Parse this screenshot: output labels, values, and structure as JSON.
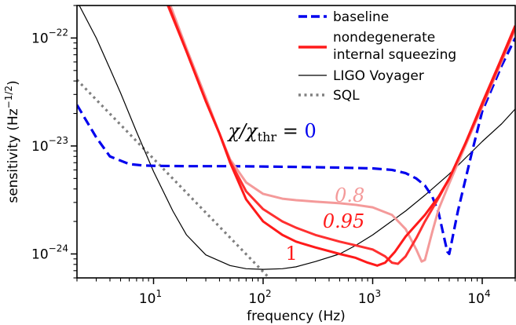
{
  "chart_data": {
    "type": "line",
    "xlabel": "frequency (Hz)",
    "ylabel": "sensitivity (Hz⁻¹ᐟ²)",
    "ylabel_parts": {
      "main": "sensitivity (Hz",
      "sup": "−1/2",
      "close": ")"
    },
    "x_scale": "log",
    "y_scale": "log",
    "xlim": [
      2,
      20000
    ],
    "ylim": [
      6e-25,
      2e-22
    ],
    "x_ticks": [
      {
        "value": 10,
        "base": "10",
        "exp": "1"
      },
      {
        "value": 100,
        "base": "10",
        "exp": "2"
      },
      {
        "value": 1000,
        "base": "10",
        "exp": "3"
      },
      {
        "value": 10000,
        "base": "10",
        "exp": "4"
      }
    ],
    "y_ticks": [
      {
        "value": 1e-24,
        "base": "10",
        "exp": "−24"
      },
      {
        "value": 1e-23,
        "base": "10",
        "exp": "−23"
      },
      {
        "value": 1e-22,
        "base": "10",
        "exp": "−22"
      }
    ],
    "legend": {
      "placement": "top-right",
      "entries": [
        {
          "label": "baseline",
          "color": "#0000ee",
          "style": "dashed"
        },
        {
          "label": "nondegenerate",
          "label2": "internal squeezing",
          "color": "#ff1a1a",
          "style": "solid-thick"
        },
        {
          "label": "LIGO Voyager",
          "color": "#000000",
          "style": "solid-thin"
        },
        {
          "label": "SQL",
          "color": "#808080",
          "style": "dotted"
        }
      ]
    },
    "annotations": [
      {
        "text": "χ/χ",
        "sub": "thr",
        "eq": " = ",
        "val": "0",
        "val_color": "#0000ee",
        "x": 48,
        "y": 1.2e-23
      },
      {
        "text": "0.8",
        "color": "#f49a9a",
        "x": 450,
        "y": 3.05e-24
      },
      {
        "text": "0.95",
        "color": "#ff1a1a",
        "x": 350,
        "y": 1.75e-24
      },
      {
        "text": "1",
        "color": "#ff1a1a",
        "x": 160,
        "y": 8.8e-25
      }
    ],
    "series": [
      {
        "name": "baseline",
        "color": "#0000ee",
        "style": "dashed",
        "x": [
          2,
          3,
          4,
          6,
          8,
          10,
          20,
          50,
          100,
          200,
          500,
          1000,
          1500,
          2000,
          2500,
          3000,
          3500,
          4000,
          4500,
          4800,
          5000,
          6000,
          8000,
          10000,
          15000,
          20000
        ],
        "y": [
          2.4e-23,
          1.2e-23,
          8e-24,
          6.8e-24,
          6.6e-24,
          6.55e-24,
          6.5e-24,
          6.5e-24,
          6.45e-24,
          6.4e-24,
          6.3e-24,
          6.2e-24,
          6e-24,
          5.6e-24,
          5e-24,
          4.3e-24,
          3.4e-24,
          2.4e-24,
          1.4e-24,
          1.05e-24,
          1e-24,
          2.5e-24,
          8.5e-24,
          2.1e-23,
          5.5e-23,
          1e-22
        ]
      },
      {
        "name": "0.8",
        "color": "#f49a9a",
        "style": "solid-thick",
        "x": [
          14,
          20,
          30,
          40,
          50,
          70,
          100,
          150,
          200,
          300,
          500,
          700,
          1000,
          1500,
          2000,
          2500,
          2800,
          3000,
          3500,
          4000,
          5000,
          7000,
          10000,
          15000,
          20000
        ],
        "y": [
          2.1e-22,
          8e-23,
          2.8e-23,
          1.3e-23,
          7.5e-24,
          4.6e-24,
          3.6e-24,
          3.25e-24,
          3.15e-24,
          3.05e-24,
          2.95e-24,
          2.85e-24,
          2.7e-24,
          2.3e-24,
          1.7e-24,
          1.1e-24,
          8.5e-25,
          8.8e-25,
          1.6e-24,
          2.6e-24,
          4.5e-24,
          1e-23,
          2.3e-23,
          6e-23,
          1.2e-22
        ]
      },
      {
        "name": "0.95",
        "color": "#ff3030",
        "style": "solid-thick",
        "x": [
          13,
          20,
          30,
          40,
          50,
          70,
          100,
          150,
          200,
          300,
          500,
          700,
          1000,
          1300,
          1500,
          1700,
          2000,
          2500,
          3000,
          4000,
          5000,
          7000,
          10000,
          15000,
          20000
        ],
        "y": [
          2.2e-22,
          7.5e-23,
          2.6e-23,
          1.3e-23,
          7.2e-24,
          3.8e-24,
          2.6e-24,
          2e-24,
          1.75e-24,
          1.5e-24,
          1.3e-24,
          1.2e-24,
          1.1e-24,
          9.5e-25,
          8.3e-25,
          8.1e-25,
          9.5e-25,
          1.4e-24,
          2e-24,
          3.3e-24,
          5e-24,
          1.05e-23,
          2.4e-23,
          6.3e-23,
          1.25e-22
        ]
      },
      {
        "name": "1",
        "color": "#ff1a1a",
        "style": "solid-thick",
        "x": [
          13,
          20,
          30,
          40,
          50,
          70,
          100,
          150,
          200,
          300,
          500,
          700,
          900,
          1100,
          1300,
          1600,
          2000,
          3000,
          4000,
          5000,
          7000,
          10000,
          15000,
          20000
        ],
        "y": [
          2.3e-22,
          7.5e-23,
          2.6e-23,
          1.3e-23,
          7e-24,
          3.2e-24,
          2e-24,
          1.5e-24,
          1.3e-24,
          1.15e-24,
          1e-24,
          9.2e-25,
          8.3e-25,
          7.8e-25,
          8.3e-25,
          1.05e-24,
          1.45e-24,
          2.3e-24,
          3.4e-24,
          5e-24,
          1.05e-23,
          2.5e-23,
          6.5e-23,
          1.3e-22
        ]
      },
      {
        "name": "LIGO Voyager",
        "color": "#000000",
        "style": "solid-thin",
        "x": [
          2,
          3,
          4,
          5,
          7,
          10,
          15,
          20,
          30,
          50,
          70,
          100,
          150,
          200,
          300,
          500,
          700,
          1000,
          2000,
          3000,
          5000,
          10000,
          15000,
          20000
        ],
        "y": [
          2.2e-22,
          1e-22,
          5.2e-23,
          3.1e-23,
          1.35e-23,
          5.8e-24,
          2.5e-24,
          1.5e-24,
          9.8e-25,
          7.8e-25,
          7.3e-25,
          7.2e-25,
          7.3e-25,
          7.6e-25,
          8.5e-25,
          1e-24,
          1.2e-24,
          1.5e-24,
          2.5e-24,
          3.5e-24,
          5.5e-24,
          1.1e-23,
          1.6e-23,
          2.2e-23
        ]
      },
      {
        "name": "SQL",
        "color": "#808080",
        "style": "dotted",
        "x": [
          2,
          110
        ],
        "y": [
          4.1e-23,
          6.2e-25
        ]
      }
    ]
  }
}
